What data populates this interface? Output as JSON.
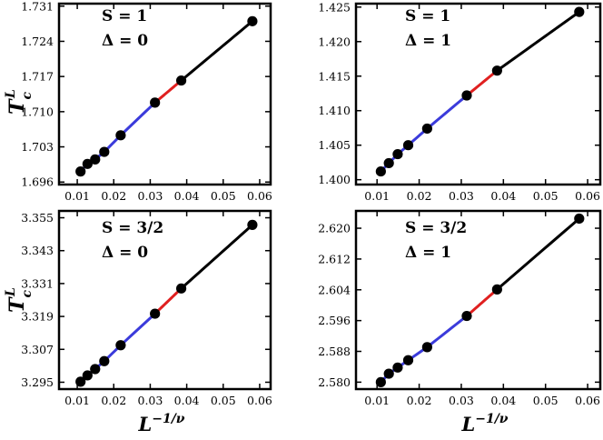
{
  "figure": {
    "ylabel_symbol": "T",
    "ylabel_sub": "c",
    "ylabel_sup": "L",
    "xlabel_symbol": "L",
    "xlabel_sup": "−1/ν"
  },
  "chart_data": [
    {
      "type": "scatter",
      "annotation": [
        "S = 1",
        "Δ = 0"
      ],
      "x": [
        0.0109,
        0.0128,
        0.0149,
        0.0174,
        0.0219,
        0.0313,
        0.0385,
        0.058
      ],
      "y": [
        1.6981,
        1.6996,
        1.7005,
        1.702,
        1.7053,
        1.7118,
        1.7162,
        1.728
      ],
      "xlim": [
        0.005,
        0.063
      ],
      "ylim": [
        1.6955,
        1.7315
      ],
      "xticks": [
        "0.01",
        "0.02",
        "0.03",
        "0.04",
        "0.05",
        "0.06"
      ],
      "yticks": [
        "1.696",
        "1.703",
        "1.710",
        "1.717",
        "1.724",
        "1.731"
      ],
      "segments": {
        "blue": [
          0.0109,
          0.0313
        ],
        "red": [
          0.0313,
          0.0385
        ],
        "black": [
          0.0385,
          0.058
        ]
      },
      "colors": {
        "points": "#000000",
        "blue": "#3b3bdb",
        "red": "#e02020",
        "black": "#000000"
      }
    },
    {
      "type": "scatter",
      "annotation": [
        "S = 1",
        "Δ = 1"
      ],
      "x": [
        0.0109,
        0.0128,
        0.0149,
        0.0174,
        0.0219,
        0.0313,
        0.0385,
        0.058
      ],
      "y": [
        1.4012,
        1.4024,
        1.4037,
        1.405,
        1.4074,
        1.4122,
        1.4158,
        1.4243
      ],
      "xlim": [
        0.005,
        0.063
      ],
      "ylim": [
        1.3993,
        1.4255
      ],
      "xticks": [
        "0.01",
        "0.02",
        "0.03",
        "0.04",
        "0.05",
        "0.06"
      ],
      "yticks": [
        "1.400",
        "1.405",
        "1.410",
        "1.415",
        "1.420",
        "1.425"
      ],
      "segments": {
        "blue": [
          0.0109,
          0.0313
        ],
        "red": [
          0.0313,
          0.0385
        ],
        "black": [
          0.0385,
          0.058
        ]
      },
      "colors": {
        "points": "#000000",
        "blue": "#3b3bdb",
        "red": "#e02020",
        "black": "#000000"
      }
    },
    {
      "type": "scatter",
      "annotation": [
        "S = 3/2",
        "Δ = 0"
      ],
      "x": [
        0.0109,
        0.0128,
        0.0149,
        0.0174,
        0.0219,
        0.0313,
        0.0385,
        0.058
      ],
      "y": [
        3.2952,
        3.2975,
        3.2998,
        3.3027,
        3.3085,
        3.32,
        3.3292,
        3.3524
      ],
      "xlim": [
        0.005,
        0.063
      ],
      "ylim": [
        3.2925,
        3.3575
      ],
      "xticks": [
        "0.01",
        "0.02",
        "0.03",
        "0.04",
        "0.05",
        "0.06"
      ],
      "yticks": [
        "3.295",
        "3.307",
        "3.319",
        "3.331",
        "3.343",
        "3.355"
      ],
      "segments": {
        "blue": [
          0.0109,
          0.0313
        ],
        "red": [
          0.0313,
          0.0385
        ],
        "black": [
          0.0385,
          0.058
        ]
      },
      "colors": {
        "points": "#000000",
        "blue": "#3b3bdb",
        "red": "#e02020",
        "black": "#000000"
      }
    },
    {
      "type": "scatter",
      "annotation": [
        "S = 3/2",
        "Δ = 1"
      ],
      "x": [
        0.0109,
        0.0128,
        0.0149,
        0.0174,
        0.0219,
        0.0313,
        0.0385,
        0.058
      ],
      "y": [
        2.58,
        2.5822,
        2.5838,
        2.5857,
        2.5891,
        2.5972,
        2.6041,
        2.6225
      ],
      "xlim": [
        0.005,
        0.063
      ],
      "ylim": [
        2.5782,
        2.6245
      ],
      "xticks": [
        "0.01",
        "0.02",
        "0.03",
        "0.04",
        "0.05",
        "0.06"
      ],
      "yticks": [
        "2.580",
        "2.588",
        "2.596",
        "2.604",
        "2.612",
        "2.620"
      ],
      "segments": {
        "blue": [
          0.0109,
          0.0313
        ],
        "red": [
          0.0313,
          0.0385
        ],
        "black": [
          0.0385,
          0.058
        ]
      },
      "colors": {
        "points": "#000000",
        "blue": "#3b3bdb",
        "red": "#e02020",
        "black": "#000000"
      }
    }
  ]
}
